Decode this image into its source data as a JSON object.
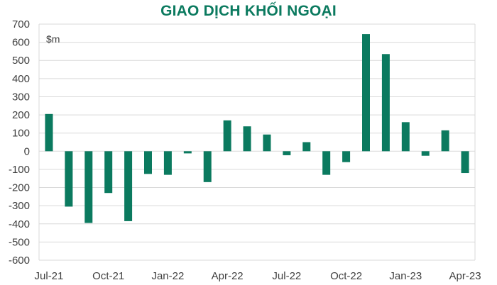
{
  "chart_data": {
    "type": "bar",
    "title": "GIAO DỊCH KHỐI NGOẠI",
    "unit_label": "$m",
    "xlabel": "",
    "ylabel": "",
    "ylim": [
      -600,
      700
    ],
    "y_ticks": [
      700,
      600,
      500,
      400,
      300,
      200,
      100,
      0,
      -100,
      -200,
      -300,
      -400,
      -500,
      -600
    ],
    "x_tick_labels": [
      "Jul-21",
      "Oct-21",
      "Jan-22",
      "Apr-22",
      "Jul-22",
      "Oct-22",
      "Jan-23",
      "Apr-23"
    ],
    "categories": [
      "Jul-21",
      "Aug-21",
      "Sep-21",
      "Oct-21",
      "Nov-21",
      "Dec-21",
      "Jan-22",
      "Feb-22",
      "Mar-22",
      "Apr-22",
      "May-22",
      "Jun-22",
      "Jul-22",
      "Aug-22",
      "Sep-22",
      "Oct-22",
      "Nov-22",
      "Dec-22",
      "Jan-23",
      "Feb-23",
      "Mar-23",
      "Apr-23"
    ],
    "values": [
      205,
      -305,
      -395,
      -230,
      -385,
      -125,
      -130,
      -12,
      -170,
      170,
      137,
      92,
      -22,
      50,
      -130,
      -60,
      645,
      535,
      160,
      -25,
      115,
      -120
    ],
    "grid": true,
    "legend": "none",
    "bar_color": "#0b7a5f"
  }
}
